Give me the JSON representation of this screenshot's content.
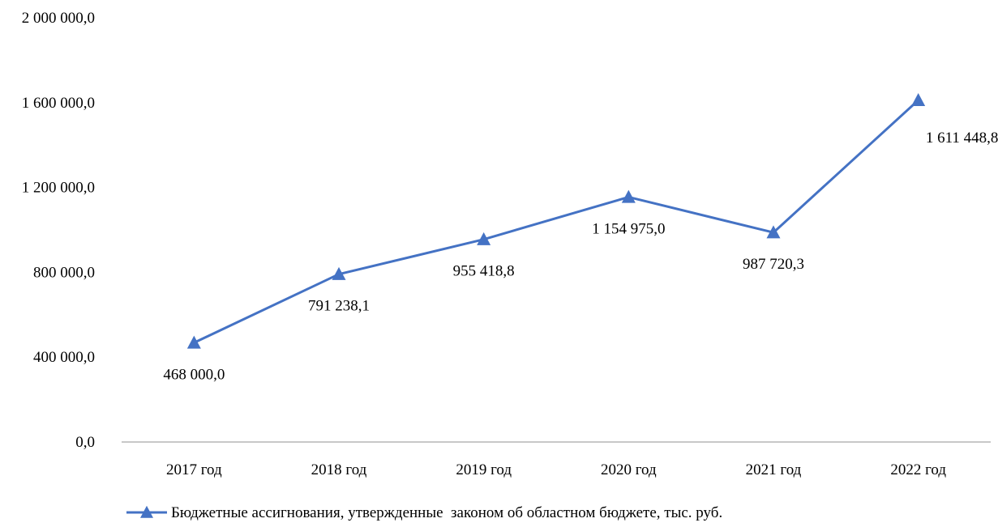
{
  "chart_data": {
    "type": "line",
    "title": "",
    "xlabel": "",
    "ylabel": "",
    "categories": [
      "2017 год",
      "2018 год",
      "2019 год",
      "2020 год",
      "2021 год",
      "2022 год"
    ],
    "series": [
      {
        "name": "Бюджетные ассигнования, утвержденные  законом об областном бюджете, тыс. руб.",
        "values": [
          468000.0,
          791238.1,
          955418.8,
          1154975.0,
          987720.3,
          1611448.8
        ],
        "data_labels": [
          "468 000,0",
          "791 238,1",
          "955 418,8",
          "1 154 975,0",
          "987 720,3",
          "1 611 448,8"
        ],
        "color": "#4472C4",
        "marker": "triangle"
      }
    ],
    "ylim": [
      0,
      2000000
    ],
    "yticks": [
      0,
      400000,
      800000,
      1200000,
      1600000,
      2000000
    ],
    "ytick_labels": [
      "0,0",
      "400 000,0",
      "800 000,0",
      "1 200 000,0",
      "1 600 000,0",
      "2 000 000,0"
    ],
    "grid": false,
    "legend_position": "bottom"
  }
}
